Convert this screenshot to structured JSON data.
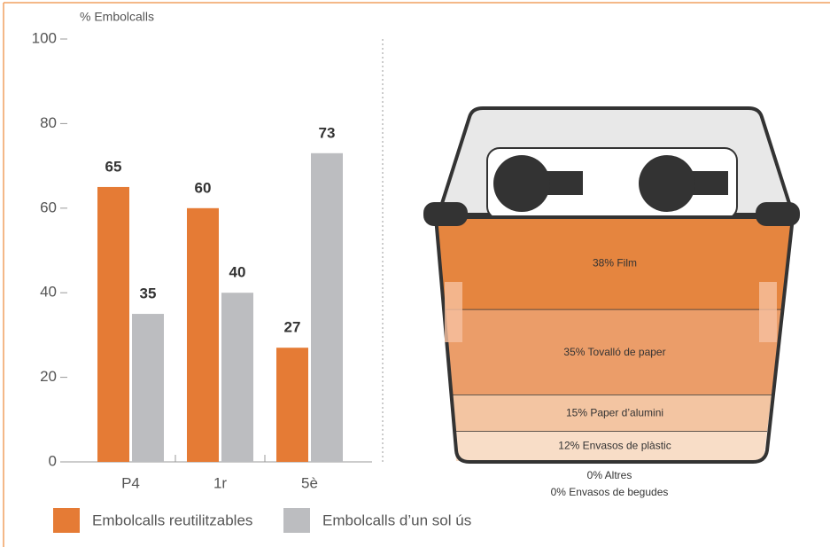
{
  "chart_data": [
    {
      "type": "bar",
      "y_label": "% Embolcalls",
      "categories": [
        "P4",
        "1r",
        "5è"
      ],
      "series": [
        {
          "name": "Embolcalls reutilitzables",
          "color": "#e57b35",
          "values": [
            65,
            60,
            27
          ]
        },
        {
          "name": "Embolcalls d’un sol ús",
          "color": "#bcbdc0",
          "values": [
            35,
            40,
            73
          ]
        }
      ],
      "ylim": [
        0,
        100
      ],
      "yticks": [
        0,
        20,
        40,
        60,
        80,
        100
      ]
    },
    {
      "type": "bin",
      "labels": [
        "38% Film",
        "35% Tovalló de paper",
        "15% Paper d’alumini",
        "12% Envasos de plàstic",
        "0% Altres",
        "0% Envasos de begudes"
      ],
      "values": [
        38,
        35,
        15,
        12,
        0,
        0
      ],
      "colors": [
        "#e5853f",
        "#eb9d69",
        "#f3c5a2",
        "#f8ddc7",
        "#f8ddc7",
        "#f8ddc7"
      ]
    }
  ]
}
